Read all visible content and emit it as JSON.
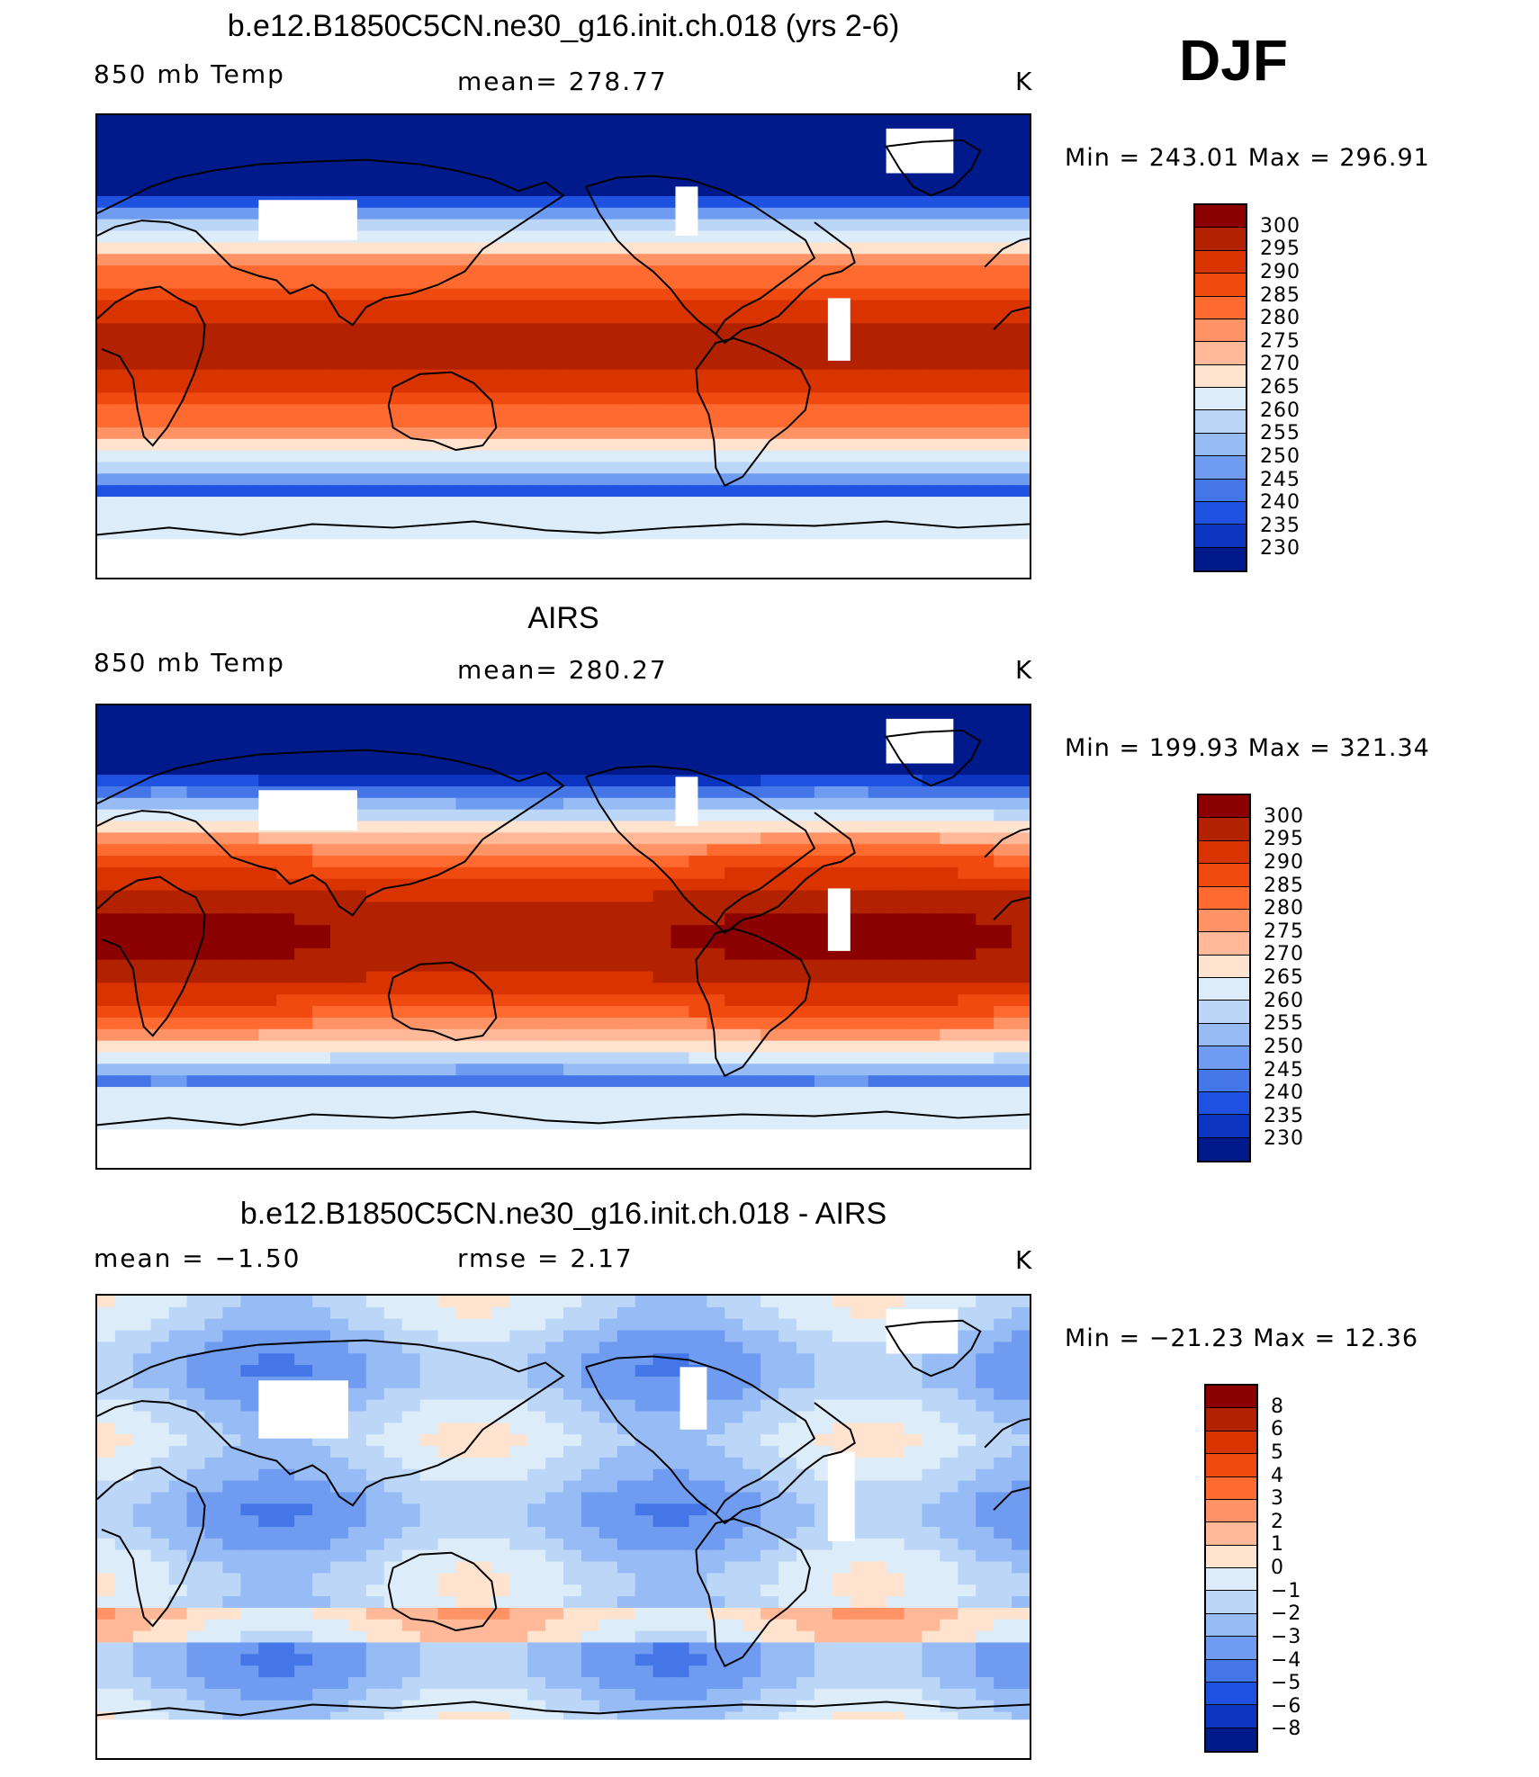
{
  "season": "DJF",
  "panels": [
    {
      "title": "b.e12.B1850C5CN.ne30_g16.init.ch.018 (yrs 2-6)",
      "left_label": "850 mb Temp",
      "center_label": "mean=  278.77",
      "units": "K",
      "minmax": "Min  =  243.01  Max  =  296.91",
      "colorbar": {
        "labels": [
          "300",
          "295",
          "290",
          "285",
          "280",
          "275",
          "270",
          "265",
          "260",
          "255",
          "250",
          "245",
          "240",
          "235",
          "230"
        ],
        "colors": [
          "#8b0000",
          "#b22200",
          "#d93300",
          "#f04a10",
          "#ff6a30",
          "#ff9366",
          "#ffb999",
          "#ffe3cf",
          "#dcecf8",
          "#bcd6f8",
          "#97bbf5",
          "#6f9bf0",
          "#4576e8",
          "#1f52e0",
          "#0b35c0",
          "#001a8c"
        ]
      },
      "map_style": "model"
    },
    {
      "title": "AIRS",
      "left_label": "850 mb Temp",
      "center_label": "mean=  280.27",
      "units": "K",
      "minmax": "Min  =  199.93  Max  =  321.34",
      "colorbar": {
        "labels": [
          "300",
          "295",
          "290",
          "285",
          "280",
          "275",
          "270",
          "265",
          "260",
          "255",
          "250",
          "245",
          "240",
          "235",
          "230"
        ],
        "colors": [
          "#8b0000",
          "#b22200",
          "#d93300",
          "#f04a10",
          "#ff6a30",
          "#ff9366",
          "#ffb999",
          "#ffe3cf",
          "#dcecf8",
          "#bcd6f8",
          "#97bbf5",
          "#6f9bf0",
          "#4576e8",
          "#1f52e0",
          "#0b35c0",
          "#001a8c"
        ]
      },
      "map_style": "obs"
    },
    {
      "title": "b.e12.B1850C5CN.ne30_g16.init.ch.018 - AIRS",
      "left_label": "mean  =    −1.50",
      "center_label": "rmse  =     2.17",
      "units": "K",
      "minmax": "Min  =  −21.23  Max  =    12.36",
      "colorbar": {
        "labels": [
          "8",
          "6",
          "5",
          "4",
          "3",
          "2",
          "1",
          "0",
          "−1",
          "−2",
          "−3",
          "−4",
          "−5",
          "−6",
          "−8"
        ],
        "colors": [
          "#8b0000",
          "#b22200",
          "#d93300",
          "#f04a10",
          "#ff6a30",
          "#ff9366",
          "#ffb999",
          "#ffe3cf",
          "#dcecf8",
          "#bcd6f8",
          "#97bbf5",
          "#6f9bf0",
          "#4576e8",
          "#1f52e0",
          "#0b35c0",
          "#001a8c"
        ]
      },
      "map_style": "diff"
    }
  ]
}
